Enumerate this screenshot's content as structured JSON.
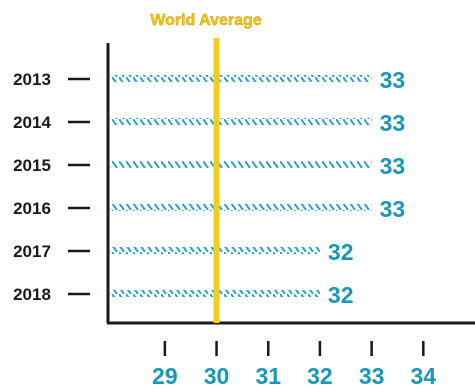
{
  "chart_data": {
    "type": "bar",
    "orientation": "horizontal",
    "categories": [
      "2013",
      "2014",
      "2015",
      "2016",
      "2017",
      "2018"
    ],
    "values": [
      33,
      33,
      33,
      33,
      32,
      32
    ],
    "data_labels": [
      "33",
      "33",
      "33",
      "33",
      "32",
      "32"
    ],
    "x_ticks": [
      29,
      30,
      31,
      32,
      33,
      34
    ],
    "x_tick_labels": [
      "29",
      "30",
      "31",
      "32",
      "33",
      "34"
    ],
    "xlim": [
      27.9,
      35
    ],
    "reference_line": {
      "label": "World Average",
      "value": 30
    },
    "grid": false,
    "legend": "none"
  },
  "colors": {
    "bar_hatch": "#2aa3c9",
    "label": "#1997b8",
    "reference": "#f3cd1f",
    "reference_text": "#f2c511",
    "axis": "#1a1a1a"
  }
}
